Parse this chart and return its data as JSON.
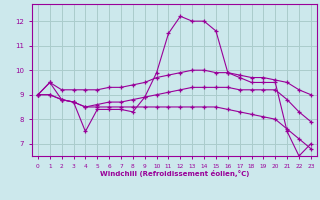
{
  "background_color": "#cce8ec",
  "grid_color": "#aacccc",
  "line_color": "#990099",
  "xlabel": "Windchill (Refroidissement éolien,°C)",
  "xlim": [
    -0.5,
    23.5
  ],
  "ylim": [
    6.5,
    12.7
  ],
  "yticks": [
    7,
    8,
    9,
    10,
    11,
    12
  ],
  "xticks": [
    0,
    1,
    2,
    3,
    4,
    5,
    6,
    7,
    8,
    9,
    10,
    11,
    12,
    13,
    14,
    15,
    16,
    17,
    18,
    19,
    20,
    21,
    22,
    23
  ],
  "series": [
    {
      "x": [
        0,
        1,
        2,
        3,
        4,
        5,
        6,
        7,
        8,
        9,
        10,
        11,
        12,
        13,
        14,
        15,
        16,
        17,
        18,
        19,
        20,
        21,
        22,
        23
      ],
      "y": [
        9.0,
        9.5,
        8.8,
        8.7,
        7.5,
        8.4,
        8.4,
        8.4,
        8.3,
        8.9,
        9.9,
        11.5,
        12.2,
        12.0,
        12.0,
        11.6,
        9.9,
        9.7,
        9.5,
        9.5,
        9.5,
        7.5,
        6.5,
        7.0
      ]
    },
    {
      "x": [
        0,
        1,
        2,
        3,
        4,
        5,
        6,
        7,
        8,
        9,
        10,
        11,
        12,
        13,
        14,
        15,
        16,
        17,
        18,
        19,
        20,
        21,
        22,
        23
      ],
      "y": [
        9.0,
        9.5,
        9.2,
        9.2,
        9.2,
        9.2,
        9.3,
        9.3,
        9.4,
        9.5,
        9.7,
        9.8,
        9.9,
        10.0,
        10.0,
        9.9,
        9.9,
        9.8,
        9.7,
        9.7,
        9.6,
        9.5,
        9.2,
        9.0
      ]
    },
    {
      "x": [
        0,
        1,
        2,
        3,
        4,
        5,
        6,
        7,
        8,
        9,
        10,
        11,
        12,
        13,
        14,
        15,
        16,
        17,
        18,
        19,
        20,
        21,
        22,
        23
      ],
      "y": [
        9.0,
        9.0,
        8.8,
        8.7,
        8.5,
        8.6,
        8.7,
        8.7,
        8.8,
        8.9,
        9.0,
        9.1,
        9.2,
        9.3,
        9.3,
        9.3,
        9.3,
        9.2,
        9.2,
        9.2,
        9.2,
        8.8,
        8.3,
        7.9
      ]
    },
    {
      "x": [
        0,
        1,
        2,
        3,
        4,
        5,
        6,
        7,
        8,
        9,
        10,
        11,
        12,
        13,
        14,
        15,
        16,
        17,
        18,
        19,
        20,
        21,
        22,
        23
      ],
      "y": [
        9.0,
        9.0,
        8.8,
        8.7,
        8.5,
        8.5,
        8.5,
        8.5,
        8.5,
        8.5,
        8.5,
        8.5,
        8.5,
        8.5,
        8.5,
        8.5,
        8.4,
        8.3,
        8.2,
        8.1,
        8.0,
        7.6,
        7.2,
        6.8
      ]
    }
  ]
}
